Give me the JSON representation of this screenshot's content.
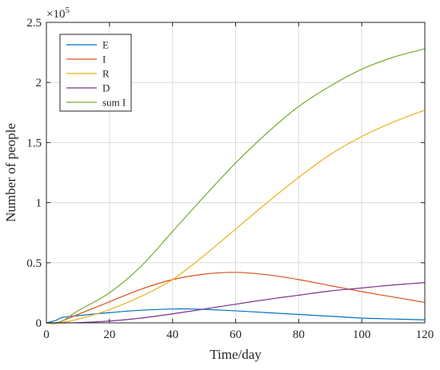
{
  "chart_data": {
    "type": "line",
    "xlabel": "Time/day",
    "ylabel": "Number of people",
    "xlim": [
      0,
      120
    ],
    "ylim": [
      0,
      250000
    ],
    "xticks": [
      0,
      20,
      40,
      60,
      80,
      100,
      120
    ],
    "xtick_labels": [
      "0",
      "20",
      "40",
      "60",
      "80",
      "100",
      "120"
    ],
    "yticks": [
      0,
      50000,
      100000,
      150000,
      200000,
      250000
    ],
    "ytick_labels": [
      "0",
      "0.5",
      "1",
      "1.5",
      "2",
      "2.5"
    ],
    "y_multiplier_base": "×10",
    "y_multiplier_exp": "5",
    "grid": true,
    "legend_position": "top-left",
    "series": [
      {
        "name": "E",
        "color": "#0072BD",
        "x": [
          0,
          3,
          5,
          10,
          20,
          30,
          40,
          45,
          50,
          60,
          70,
          80,
          90,
          100,
          110,
          120
        ],
        "y": [
          0,
          2000,
          4500,
          6000,
          8500,
          10500,
          11500,
          11600,
          11200,
          10000,
          8500,
          7000,
          5500,
          4000,
          3200,
          2500
        ]
      },
      {
        "name": "I",
        "color": "#D95319",
        "x": [
          0,
          3,
          5,
          10,
          20,
          30,
          40,
          50,
          60,
          70,
          80,
          90,
          100,
          110,
          120
        ],
        "y": [
          0,
          0,
          1500,
          7000,
          17500,
          28000,
          36000,
          40500,
          42000,
          40000,
          36000,
          31000,
          26000,
          21500,
          17000
        ]
      },
      {
        "name": "R",
        "color": "#EDB120",
        "x": [
          0,
          4,
          10,
          20,
          30,
          40,
          50,
          60,
          70,
          80,
          90,
          100,
          110,
          120
        ],
        "y": [
          0,
          0,
          3000,
          11000,
          22000,
          36000,
          56000,
          78000,
          100000,
          121000,
          140000,
          155000,
          167000,
          177000
        ]
      },
      {
        "name": "D",
        "color": "#7E2F8E",
        "x": [
          0,
          5,
          10,
          20,
          30,
          40,
          50,
          60,
          70,
          80,
          90,
          100,
          110,
          120
        ],
        "y": [
          0,
          0,
          200,
          1500,
          4000,
          7500,
          11500,
          15500,
          19500,
          23000,
          26500,
          29000,
          31500,
          33500
        ]
      },
      {
        "name": "sum I",
        "color": "#77AC30",
        "x": [
          0,
          4,
          10,
          20,
          30,
          40,
          50,
          60,
          70,
          80,
          90,
          100,
          110,
          120
        ],
        "y": [
          0,
          0,
          10000,
          25000,
          47000,
          76000,
          105000,
          133000,
          158000,
          180000,
          197000,
          211000,
          221000,
          228000
        ]
      }
    ]
  }
}
